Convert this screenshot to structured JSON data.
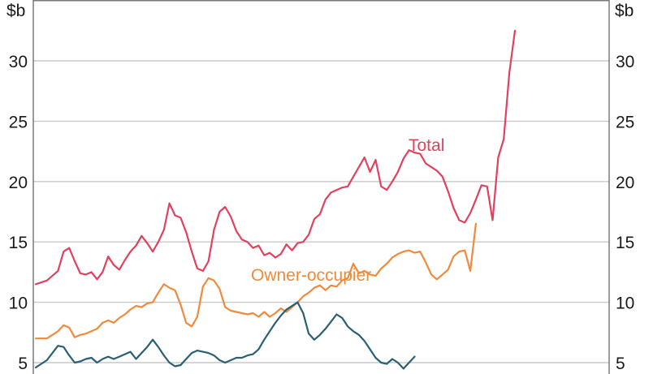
{
  "chart_data": {
    "type": "line",
    "ylabel_left": "$b",
    "ylabel_right": "$b",
    "ylim": [
      4.5,
      34.5
    ],
    "yticks": [
      5,
      10,
      15,
      20,
      25,
      30
    ],
    "grid": true,
    "x_index_range": [
      0,
      100
    ],
    "series": [
      {
        "name": "Total",
        "color": "#e0425e",
        "label_position": "above line, right of centre",
        "x": [
          0,
          2,
          4,
          5,
          6,
          7,
          8,
          9,
          10,
          11,
          12,
          13,
          14,
          15,
          16,
          17,
          18,
          19,
          20,
          21,
          22,
          23,
          24,
          25,
          26,
          27,
          28,
          29,
          30,
          31,
          32,
          33,
          34,
          35,
          36,
          37,
          38,
          39,
          40,
          41,
          42,
          43,
          44,
          45,
          46,
          47,
          48,
          49,
          50,
          51,
          52,
          53,
          54,
          55,
          56,
          57,
          58,
          59,
          60,
          61,
          62,
          63,
          64,
          65,
          66,
          67,
          68,
          69,
          70,
          71,
          72,
          73,
          74,
          75,
          76,
          77,
          78,
          79,
          80,
          81,
          82,
          83,
          84,
          85,
          86,
          87,
          88,
          89,
          90,
          91,
          92,
          93,
          94,
          95,
          96,
          97,
          98,
          99,
          100
        ],
        "values": [
          11.5,
          11.8,
          12.6,
          14.2,
          14.5,
          13.4,
          12.4,
          12.3,
          12.5,
          11.9,
          12.5,
          13.8,
          13.1,
          12.7,
          13.5,
          14.2,
          14.7,
          15.5,
          14.9,
          14.2,
          15.0,
          16.0,
          18.2,
          17.2,
          17.0,
          15.8,
          14.2,
          12.8,
          12.6,
          13.4,
          16.0,
          17.5,
          17.9,
          17.1,
          15.9,
          15.2,
          15.0,
          14.5,
          14.7,
          13.9,
          14.1,
          13.7,
          14.0,
          14.8,
          14.3,
          14.9,
          15.0,
          15.6,
          16.9,
          17.3,
          18.5,
          19.1,
          19.3,
          19.5,
          19.6,
          20.4,
          21.2,
          22.0,
          20.8,
          21.8,
          19.6,
          19.3,
          20.0,
          20.8,
          21.9,
          22.6,
          22.4,
          22.3,
          21.5,
          21.2,
          20.9,
          20.4,
          19.2,
          17.8,
          16.8,
          16.6,
          17.4,
          18.5,
          19.7,
          19.6,
          16.8,
          22.0,
          23.5,
          29.0,
          32.5,
          32.2,
          32.2,
          32.2,
          32.2,
          32.2,
          32.2,
          32.2,
          32.2,
          32.2,
          32.2,
          32.2,
          32.2,
          32.2,
          32.2
        ]
      },
      {
        "name": "Owner-occupier",
        "color": "#f08a3c",
        "label_position": "above line, centre",
        "x": [
          0,
          2,
          4,
          5,
          6,
          7,
          8,
          9,
          10,
          11,
          12,
          13,
          14,
          15,
          16,
          17,
          18,
          19,
          20,
          21,
          22,
          23,
          24,
          25,
          26,
          27,
          28,
          29,
          30,
          31,
          32,
          33,
          34,
          35,
          36,
          37,
          38,
          39,
          40,
          41,
          42,
          43,
          44,
          45,
          46,
          47,
          48,
          49,
          50,
          51,
          52,
          53,
          54,
          55,
          56,
          57,
          58,
          59,
          60,
          61,
          62,
          63,
          64,
          65,
          66,
          67,
          68,
          69,
          70,
          71,
          72,
          73,
          74,
          75,
          76,
          77,
          78,
          79,
          80,
          81,
          82,
          83,
          84,
          85,
          86,
          87,
          88,
          89,
          90,
          91,
          92,
          93,
          94,
          95,
          96,
          97,
          98,
          99,
          100
        ],
        "values": [
          7.0,
          7.0,
          7.6,
          8.1,
          7.9,
          7.1,
          7.3,
          7.4,
          7.6,
          7.8,
          8.3,
          8.5,
          8.3,
          8.7,
          9.0,
          9.4,
          9.7,
          9.6,
          9.9,
          10.0,
          10.8,
          11.5,
          11.2,
          11.0,
          9.8,
          8.3,
          8.0,
          8.8,
          11.3,
          12.0,
          11.8,
          11.1,
          9.6,
          9.3,
          9.2,
          9.1,
          9.0,
          9.1,
          8.8,
          9.2,
          8.8,
          9.1,
          9.5,
          9.2,
          9.6,
          10.0,
          10.5,
          10.8,
          11.2,
          11.4,
          11.0,
          11.4,
          11.3,
          11.8,
          12.0,
          13.2,
          12.4,
          12.6,
          12.3,
          12.2,
          12.8,
          13.2,
          13.7,
          14.0,
          14.2,
          14.3,
          14.1,
          14.2,
          13.3,
          12.3,
          11.9,
          12.3,
          12.7,
          13.8,
          14.2,
          14.3,
          12.6,
          16.5,
          19.5,
          23.3,
          23.0,
          23.0,
          23.0,
          23.0,
          23.0,
          23.0,
          23.0,
          23.0,
          23.0,
          23.0,
          23.0,
          23.0,
          23.0,
          23.0,
          23.0,
          23.0,
          23.0,
          23.0,
          23.0
        ],
        "x_end": 79
      },
      {
        "name": "",
        "color": "#2b5f73",
        "x": [
          0,
          2,
          4,
          5,
          6,
          7,
          8,
          9,
          10,
          11,
          12,
          13,
          14,
          15,
          16,
          17,
          18,
          19,
          20,
          21,
          22,
          23,
          24,
          25,
          26,
          27,
          28,
          29,
          30,
          31,
          32,
          33,
          34,
          35,
          36,
          37,
          38,
          39,
          40,
          41,
          42,
          43,
          44,
          45,
          46,
          47,
          48,
          49,
          50,
          51,
          52,
          53,
          54,
          55,
          56,
          57,
          58,
          59,
          60,
          61,
          62,
          63,
          64,
          65,
          66,
          67,
          68,
          69,
          70,
          71,
          72,
          73,
          74,
          75,
          76,
          77,
          78,
          79
        ],
        "values": [
          4.6,
          5.2,
          6.4,
          6.3,
          5.6,
          5.0,
          5.1,
          5.3,
          5.4,
          5.0,
          5.3,
          5.5,
          5.3,
          5.5,
          5.7,
          5.9,
          5.3,
          5.8,
          6.3,
          6.9,
          6.3,
          5.6,
          5.0,
          4.7,
          4.8,
          5.3,
          5.8,
          6.0,
          5.9,
          5.8,
          5.6,
          5.2,
          5.0,
          5.2,
          5.4,
          5.4,
          5.6,
          5.7,
          6.1,
          6.9,
          7.6,
          8.3,
          8.9,
          9.4,
          9.7,
          10.0,
          9.1,
          7.4,
          6.9,
          7.3,
          7.8,
          8.4,
          9.0,
          8.7,
          8.0,
          7.6,
          7.3,
          6.8,
          6.1,
          5.4,
          5.0,
          4.9,
          5.3,
          5.0,
          4.5,
          5.0,
          5.5,
          6.8,
          9.2,
          9.2,
          9.2,
          9.2,
          9.2,
          9.2,
          9.2,
          9.2,
          9.2,
          9.2
        ],
        "x_end": 68
      }
    ]
  }
}
